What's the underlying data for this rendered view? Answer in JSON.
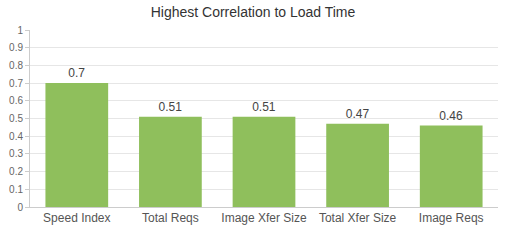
{
  "chart_data": {
    "type": "bar",
    "title": "Highest Correlation to Load Time",
    "categories": [
      "Speed Index",
      "Total Reqs",
      "Image Xfer Size",
      "Total Xfer Size",
      "Image Reqs"
    ],
    "values": [
      0.7,
      0.51,
      0.51,
      0.47,
      0.46
    ],
    "color": "#8fbf5c",
    "ylim": [
      0,
      1
    ],
    "yticks": [
      0,
      0.1,
      0.2,
      0.3,
      0.4,
      0.5,
      0.6,
      0.7,
      0.8,
      0.9,
      1
    ],
    "grid": true,
    "data_labels": true
  }
}
